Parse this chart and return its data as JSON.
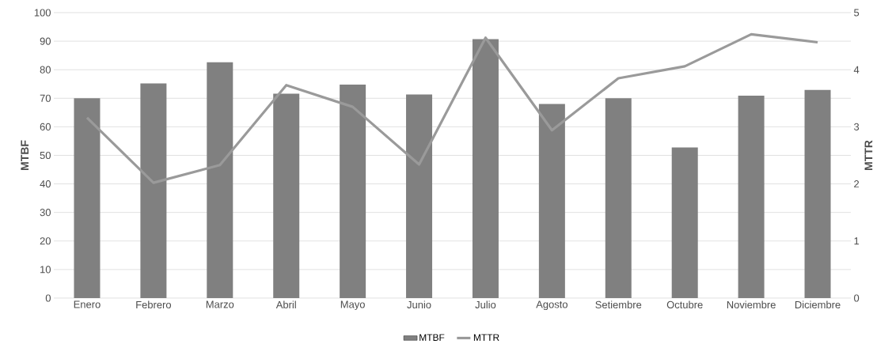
{
  "chart_data": {
    "type": "bar",
    "categories": [
      "Enero",
      "Febrero",
      "Marzo",
      "Abril",
      "Mayo",
      "Junio",
      "Julio",
      "Agosto",
      "Setiembre",
      "Octubre",
      "Noviembre",
      "Diciembre"
    ],
    "series": [
      {
        "name": "MTBF",
        "color": "#808080",
        "values": [
          70,
          75.2,
          82.6,
          71.6,
          74.8,
          71.3,
          90.7,
          68,
          70,
          52.8,
          70.9,
          72.9
        ]
      },
      {
        "name": "MTTR",
        "type": "line",
        "axis": "y2",
        "color": "#9a9a9a",
        "values": [
          3.16,
          2.02,
          2.33,
          3.73,
          3.35,
          2.34,
          4.56,
          2.94,
          3.85,
          4.06,
          4.62,
          4.48
        ]
      }
    ],
    "ylabel": "MTBF",
    "y2label": "MTTR",
    "ylim": [
      0,
      100
    ],
    "yticks": [
      0,
      10,
      20,
      30,
      40,
      50,
      60,
      70,
      80,
      90,
      100
    ],
    "y2lim": [
      0,
      5
    ],
    "y2ticks": [
      0,
      1,
      2,
      3,
      4,
      5
    ],
    "grid": "y",
    "legend": "bottom"
  }
}
